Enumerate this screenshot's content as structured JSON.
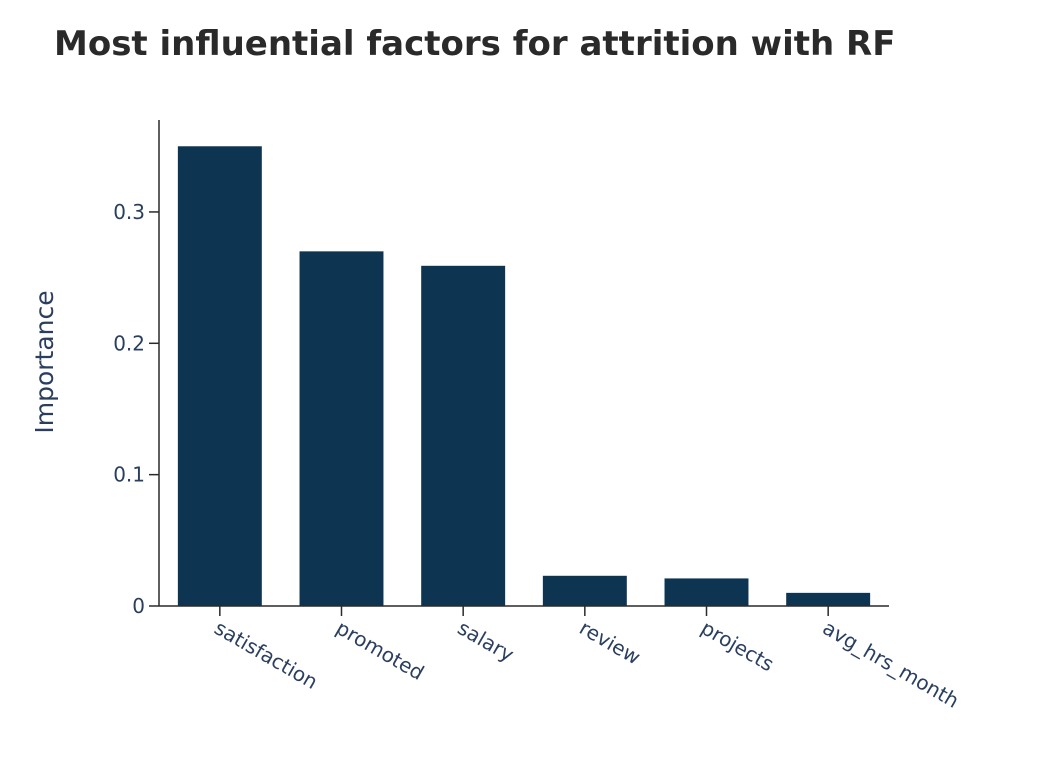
{
  "chart_data": {
    "type": "bar",
    "title": "Most influential factors for attrition with RF",
    "xlabel": "",
    "ylabel": "Importance",
    "categories": [
      "satisfaction",
      "promoted",
      "salary",
      "review",
      "projects",
      "avg_hrs_month"
    ],
    "values": [
      0.35,
      0.27,
      0.259,
      0.023,
      0.021,
      0.01
    ],
    "ylim": [
      0,
      0.37
    ],
    "yticks": [
      0,
      0.1,
      0.2,
      0.3
    ],
    "ytick_labels": [
      "0",
      "0.1",
      "0.2",
      "0.3"
    ],
    "grid": false,
    "bar_color": "#0d3552",
    "axis_color": "#2a2a2a"
  }
}
